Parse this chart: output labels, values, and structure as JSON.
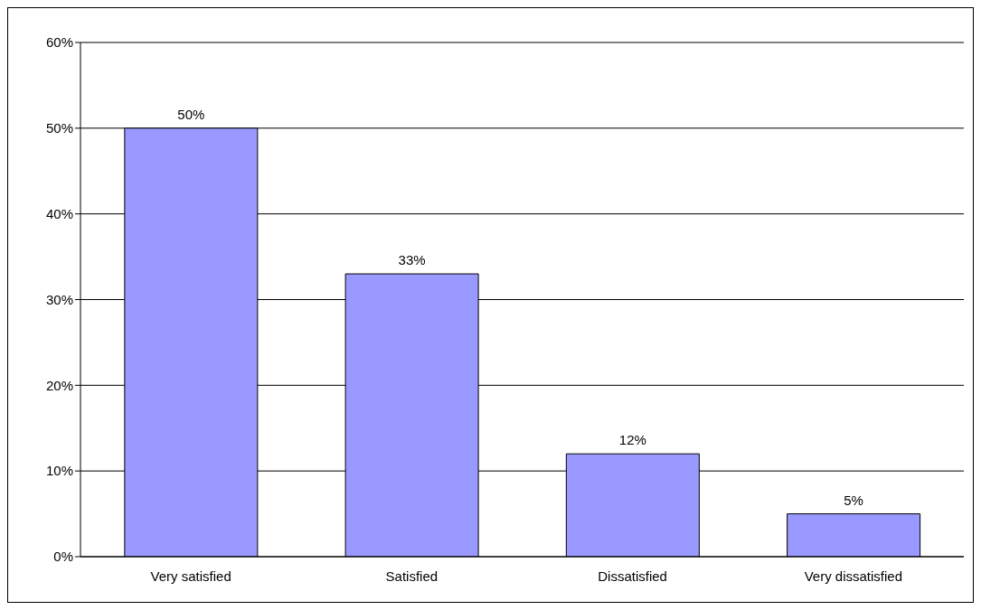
{
  "chart_data": {
    "type": "bar",
    "categories": [
      "Very satisfied",
      "Satisfied",
      "Dissatisfied",
      "Very dissatisfied"
    ],
    "values": [
      50,
      33,
      12,
      5
    ],
    "color": "#9999ff",
    "value_labels": [
      "50%",
      "33%",
      "12%",
      "5%"
    ],
    "ylim": [
      0,
      60
    ],
    "yticks": [
      {
        "value": 0,
        "label": "0%"
      },
      {
        "value": 10,
        "label": "10%"
      },
      {
        "value": 20,
        "label": "20%"
      },
      {
        "value": 30,
        "label": "30%"
      },
      {
        "value": 40,
        "label": "40%"
      },
      {
        "value": 50,
        "label": "50%"
      },
      {
        "value": 60,
        "label": "60%"
      }
    ],
    "grid": "y",
    "legend": false
  }
}
